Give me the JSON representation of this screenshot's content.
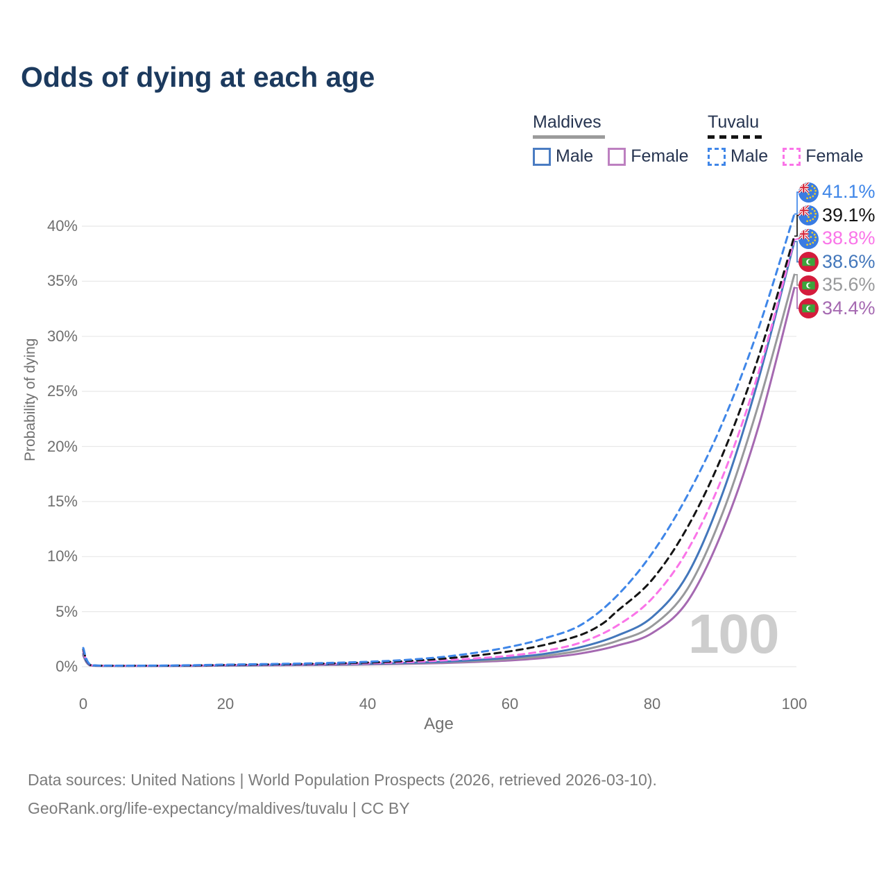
{
  "title": "Odds of dying at each age",
  "age_indicator": "100",
  "legend": {
    "groups": [
      {
        "country": "Maldives",
        "style": "solid",
        "underline_color": "#9b9b9b",
        "items": [
          {
            "label": "Male",
            "color": "#4a7cc2"
          },
          {
            "label": "Female",
            "color": "#bd80c0"
          }
        ]
      },
      {
        "country": "Tuvalu",
        "style": "dashed",
        "underline_color": "#141414",
        "items": [
          {
            "label": "Male",
            "color": "#3f86e8"
          },
          {
            "label": "Female",
            "color": "#fa74e8"
          }
        ]
      }
    ]
  },
  "chart_data": {
    "type": "line",
    "title": "Odds of dying at each age",
    "xlabel": "Age",
    "ylabel": "Probability of dying",
    "xlim": [
      0,
      100
    ],
    "ylim_pct": [
      0,
      43
    ],
    "grid": true,
    "xticks": [
      "0",
      "20",
      "40",
      "60",
      "80",
      "100"
    ],
    "xtick_values": [
      0,
      20,
      40,
      60,
      80,
      100
    ],
    "ytick_labels": [
      "0%",
      "5%",
      "10%",
      "15%",
      "20%",
      "25%",
      "30%",
      "35%",
      "40%"
    ],
    "ytick_values": [
      0,
      5,
      10,
      15,
      20,
      25,
      30,
      35,
      40
    ],
    "legend_position": "top-right",
    "series": [
      {
        "id": "tuvalu-male",
        "name": "Tuvalu Male",
        "country": "tuvalu",
        "sex": "male",
        "dashed": true,
        "color": "#3f86e8",
        "end_label": "41.1%",
        "points": [
          [
            0,
            1.7
          ],
          [
            1,
            0.18
          ],
          [
            4,
            0.1
          ],
          [
            10,
            0.1
          ],
          [
            15,
            0.13
          ],
          [
            20,
            0.19
          ],
          [
            25,
            0.23
          ],
          [
            30,
            0.28
          ],
          [
            35,
            0.35
          ],
          [
            40,
            0.45
          ],
          [
            45,
            0.6
          ],
          [
            50,
            0.85
          ],
          [
            55,
            1.25
          ],
          [
            60,
            1.8
          ],
          [
            65,
            2.6
          ],
          [
            70,
            3.8
          ],
          [
            75,
            6.4
          ],
          [
            80,
            10.3
          ],
          [
            85,
            15.6
          ],
          [
            90,
            22.3
          ],
          [
            95,
            30.8
          ],
          [
            100,
            41.1
          ]
        ]
      },
      {
        "id": "tuvalu-all",
        "name": "Tuvalu",
        "country": "tuvalu",
        "sex": "both",
        "dashed": true,
        "color": "#141414",
        "end_label": "39.1%",
        "points": [
          [
            0,
            1.55
          ],
          [
            1,
            0.16
          ],
          [
            4,
            0.09
          ],
          [
            10,
            0.09
          ],
          [
            15,
            0.11
          ],
          [
            20,
            0.16
          ],
          [
            25,
            0.2
          ],
          [
            30,
            0.24
          ],
          [
            35,
            0.3
          ],
          [
            40,
            0.38
          ],
          [
            45,
            0.5
          ],
          [
            50,
            0.7
          ],
          [
            55,
            1.0
          ],
          [
            60,
            1.4
          ],
          [
            65,
            2.0
          ],
          [
            70,
            2.9
          ],
          [
            73,
            3.9
          ],
          [
            75,
            5.0
          ],
          [
            80,
            7.9
          ],
          [
            85,
            12.7
          ],
          [
            90,
            19.4
          ],
          [
            95,
            28.2
          ],
          [
            100,
            39.1
          ]
        ]
      },
      {
        "id": "tuvalu-female",
        "name": "Tuvalu Female",
        "country": "tuvalu",
        "sex": "female",
        "dashed": true,
        "color": "#fa74e8",
        "end_label": "38.8%",
        "points": [
          [
            0,
            1.4
          ],
          [
            1,
            0.14
          ],
          [
            4,
            0.08
          ],
          [
            10,
            0.08
          ],
          [
            15,
            0.1
          ],
          [
            20,
            0.14
          ],
          [
            25,
            0.17
          ],
          [
            30,
            0.2
          ],
          [
            35,
            0.25
          ],
          [
            40,
            0.31
          ],
          [
            45,
            0.4
          ],
          [
            50,
            0.55
          ],
          [
            55,
            0.75
          ],
          [
            60,
            1.0
          ],
          [
            65,
            1.45
          ],
          [
            70,
            2.2
          ],
          [
            75,
            3.7
          ],
          [
            80,
            6.2
          ],
          [
            85,
            10.6
          ],
          [
            90,
            17.4
          ],
          [
            95,
            26.8
          ],
          [
            100,
            38.8
          ]
        ]
      },
      {
        "id": "maldives-male",
        "name": "Maldives Male",
        "country": "maldives",
        "sex": "male",
        "dashed": false,
        "color": "#4377bb",
        "end_label": "38.6%",
        "points": [
          [
            0,
            1.2
          ],
          [
            1,
            0.12
          ],
          [
            4,
            0.07
          ],
          [
            10,
            0.07
          ],
          [
            15,
            0.09
          ],
          [
            20,
            0.12
          ],
          [
            25,
            0.15
          ],
          [
            30,
            0.18
          ],
          [
            35,
            0.22
          ],
          [
            40,
            0.27
          ],
          [
            45,
            0.34
          ],
          [
            50,
            0.44
          ],
          [
            55,
            0.6
          ],
          [
            60,
            0.82
          ],
          [
            65,
            1.18
          ],
          [
            70,
            1.78
          ],
          [
            75,
            2.8
          ],
          [
            80,
            4.5
          ],
          [
            85,
            8.4
          ],
          [
            90,
            15.9
          ],
          [
            95,
            26.2
          ],
          [
            100,
            38.6
          ]
        ]
      },
      {
        "id": "maldives-all",
        "name": "Maldives",
        "country": "maldives",
        "sex": "both",
        "dashed": false,
        "color": "#98999b",
        "end_label": "35.6%",
        "points": [
          [
            0,
            1.1
          ],
          [
            1,
            0.11
          ],
          [
            4,
            0.065
          ],
          [
            10,
            0.065
          ],
          [
            15,
            0.08
          ],
          [
            20,
            0.11
          ],
          [
            25,
            0.13
          ],
          [
            30,
            0.16
          ],
          [
            35,
            0.19
          ],
          [
            40,
            0.23
          ],
          [
            45,
            0.29
          ],
          [
            50,
            0.38
          ],
          [
            55,
            0.51
          ],
          [
            60,
            0.69
          ],
          [
            65,
            0.99
          ],
          [
            70,
            1.48
          ],
          [
            75,
            2.32
          ],
          [
            80,
            3.7
          ],
          [
            85,
            7.1
          ],
          [
            90,
            14.1
          ],
          [
            95,
            23.9
          ],
          [
            100,
            35.6
          ]
        ]
      },
      {
        "id": "maldives-female",
        "name": "Maldives Female",
        "country": "maldives",
        "sex": "female",
        "dashed": false,
        "color": "#a569b1",
        "end_label": "34.4%",
        "points": [
          [
            0,
            1.0
          ],
          [
            1,
            0.1
          ],
          [
            4,
            0.06
          ],
          [
            10,
            0.06
          ],
          [
            15,
            0.07
          ],
          [
            20,
            0.1
          ],
          [
            25,
            0.12
          ],
          [
            30,
            0.14
          ],
          [
            35,
            0.16
          ],
          [
            40,
            0.2
          ],
          [
            45,
            0.25
          ],
          [
            50,
            0.32
          ],
          [
            55,
            0.43
          ],
          [
            60,
            0.57
          ],
          [
            65,
            0.81
          ],
          [
            70,
            1.21
          ],
          [
            75,
            1.9
          ],
          [
            80,
            3.05
          ],
          [
            85,
            5.95
          ],
          [
            90,
            12.5
          ],
          [
            95,
            21.9
          ],
          [
            100,
            34.4
          ]
        ]
      }
    ]
  },
  "flags": {
    "tuvalu": "tuvalu-flag-icon",
    "maldives": "maldives-flag-icon"
  },
  "footer": {
    "line1": "Data sources: United Nations | World Population Prospects (2026, retrieved 2026-03-10).",
    "line2": "GeoRank.org/life-expectancy/maldives/tuvalu | CC BY"
  }
}
